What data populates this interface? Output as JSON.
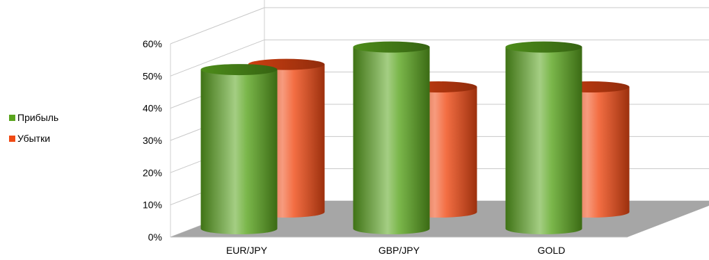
{
  "chart_data": {
    "type": "bar",
    "variant": "3d-cylinder-clustered",
    "categories": [
      "EUR/JPY",
      "GBP/JPY",
      "GOLD"
    ],
    "series": [
      {
        "name": "Прибыль",
        "values": [
          52,
          59,
          59
        ],
        "color": "#5aa51e"
      },
      {
        "name": "Убытки",
        "values": [
          48,
          41,
          41
        ],
        "color": "#f04a14"
      }
    ],
    "ylim": [
      0,
      60
    ],
    "yticks": [
      "0%",
      "10%",
      "20%",
      "30%",
      "40%",
      "50%",
      "60%"
    ],
    "grid": true,
    "legend_position": "left",
    "floor_color": "#a6a6a6",
    "title": "",
    "xlabel": "",
    "ylabel": ""
  }
}
